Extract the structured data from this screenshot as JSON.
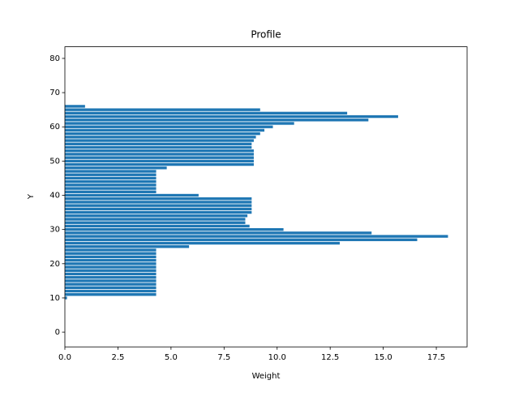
{
  "chart_data": {
    "type": "barh",
    "title": "Profile",
    "xlabel": "Weight",
    "ylabel": "Y",
    "y": [
      10,
      11,
      12,
      13,
      14,
      15,
      16,
      17,
      18,
      19,
      20,
      21,
      22,
      23,
      24,
      25,
      26,
      27,
      28,
      29,
      30,
      31,
      32,
      33,
      34,
      35,
      36,
      37,
      38,
      39,
      40,
      41,
      42,
      43,
      44,
      45,
      46,
      47,
      48,
      49,
      50,
      51,
      52,
      53,
      54,
      55,
      56,
      57,
      58,
      59,
      60,
      61,
      62,
      63,
      64,
      65,
      66
    ],
    "values": [
      0.1,
      4.3,
      4.3,
      4.3,
      4.3,
      4.3,
      4.3,
      4.3,
      4.3,
      4.3,
      4.3,
      4.3,
      4.3,
      4.3,
      4.3,
      5.85,
      12.95,
      16.6,
      18.05,
      14.45,
      10.3,
      8.7,
      8.5,
      8.5,
      8.6,
      8.8,
      8.8,
      8.8,
      8.8,
      8.8,
      6.3,
      4.3,
      4.3,
      4.3,
      4.3,
      4.3,
      4.3,
      4.3,
      4.8,
      8.9,
      8.9,
      8.9,
      8.9,
      8.9,
      8.8,
      8.8,
      8.9,
      9.0,
      9.2,
      9.4,
      9.8,
      10.8,
      14.3,
      15.7,
      13.3,
      9.2,
      0.95
    ],
    "color": "#1f77b4",
    "xlim": [
      0,
      18.95
    ],
    "xticks": [
      {
        "value": 0,
        "label": "0.0"
      },
      {
        "value": 2.5,
        "label": "2.5"
      },
      {
        "value": 5,
        "label": "5.0"
      },
      {
        "value": 7.5,
        "label": "7.5"
      },
      {
        "value": 10,
        "label": "10.0"
      },
      {
        "value": 12.5,
        "label": "12.5"
      },
      {
        "value": 15,
        "label": "15.0"
      },
      {
        "value": 17.5,
        "label": "17.5"
      }
    ],
    "ylim": [
      -4.3,
      83.4
    ],
    "yticks": [
      0,
      10,
      20,
      30,
      40,
      50,
      60,
      70,
      80
    ]
  }
}
